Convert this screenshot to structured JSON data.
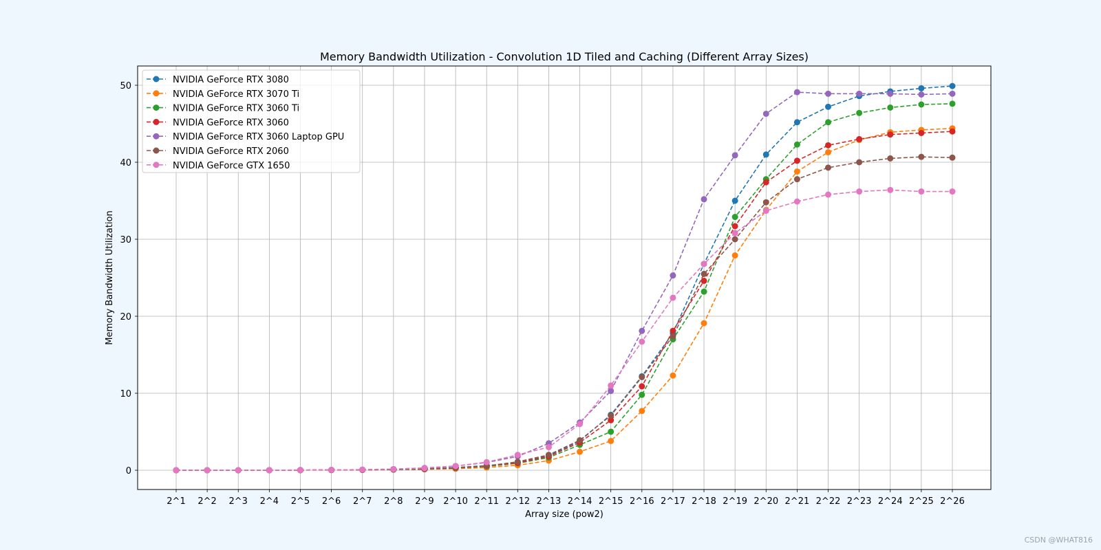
{
  "chart_data": {
    "type": "line",
    "title": "Memory Bandwidth Utilization - Convolution 1D Tiled and Caching (Different Array Sizes)",
    "xlabel": "Array size (pow2)",
    "ylabel": "Memory Bandwidth Utilization",
    "categories": [
      "2^1",
      "2^2",
      "2^3",
      "2^4",
      "2^5",
      "2^6",
      "2^7",
      "2^8",
      "2^9",
      "2^10",
      "2^11",
      "2^12",
      "2^13",
      "2^14",
      "2^15",
      "2^16",
      "2^17",
      "2^18",
      "2^19",
      "2^20",
      "2^21",
      "2^22",
      "2^23",
      "2^24",
      "2^25",
      "2^26"
    ],
    "ylim": [
      -2.5,
      52.5
    ],
    "yticks": [
      0,
      10,
      20,
      30,
      40,
      50
    ],
    "grid": true,
    "legend_position": "top-left",
    "series": [
      {
        "name": "NVIDIA GeForce RTX 3080",
        "color": "#1f77b4",
        "values": [
          0.0,
          0.0,
          0.0,
          0.01,
          0.02,
          0.03,
          0.05,
          0.1,
          0.2,
          0.35,
          0.6,
          1.0,
          1.9,
          3.8,
          7.2,
          12.2,
          17.8,
          26.8,
          35.0,
          41.0,
          45.2,
          47.2,
          48.6,
          49.2,
          49.6,
          49.9
        ]
      },
      {
        "name": "NVIDIA GeForce RTX 3070 Ti",
        "color": "#ff7f0e",
        "values": [
          0.0,
          0.0,
          0.0,
          0.0,
          0.01,
          0.02,
          0.04,
          0.07,
          0.12,
          0.2,
          0.35,
          0.65,
          1.25,
          2.4,
          3.8,
          7.7,
          12.3,
          19.1,
          27.9,
          33.8,
          38.8,
          41.3,
          42.9,
          43.9,
          44.2,
          44.4
        ]
      },
      {
        "name": "NVIDIA GeForce RTX 3060 Ti",
        "color": "#2ca02c",
        "values": [
          0.0,
          0.0,
          0.0,
          0.01,
          0.02,
          0.03,
          0.05,
          0.09,
          0.16,
          0.28,
          0.5,
          0.9,
          1.65,
          3.3,
          5.0,
          9.8,
          17.0,
          23.2,
          32.9,
          37.8,
          42.3,
          45.2,
          46.4,
          47.1,
          47.5,
          47.6
        ]
      },
      {
        "name": "NVIDIA GeForce RTX 3060",
        "color": "#d62728",
        "values": [
          0.0,
          0.0,
          0.0,
          0.01,
          0.02,
          0.03,
          0.05,
          0.09,
          0.16,
          0.3,
          0.55,
          0.95,
          1.8,
          3.6,
          6.5,
          10.9,
          18.1,
          24.6,
          31.7,
          37.4,
          40.2,
          42.2,
          43.0,
          43.6,
          43.8,
          44.0
        ]
      },
      {
        "name": "NVIDIA GeForce RTX 3060 Laptop GPU",
        "color": "#9467bd",
        "values": [
          0.0,
          0.0,
          0.01,
          0.01,
          0.03,
          0.05,
          0.08,
          0.15,
          0.3,
          0.55,
          1.0,
          1.8,
          3.5,
          6.2,
          10.3,
          18.1,
          25.3,
          35.2,
          40.9,
          46.3,
          49.1,
          48.9,
          48.9,
          48.9,
          48.8,
          48.9
        ]
      },
      {
        "name": "NVIDIA GeForce RTX 2060",
        "color": "#8c564b",
        "values": [
          0.0,
          0.0,
          0.0,
          0.01,
          0.02,
          0.03,
          0.05,
          0.09,
          0.17,
          0.3,
          0.55,
          1.1,
          2.0,
          3.9,
          7.1,
          12.1,
          17.4,
          25.5,
          30.0,
          34.8,
          37.8,
          39.3,
          40.0,
          40.5,
          40.7,
          40.6
        ]
      },
      {
        "name": "NVIDIA GeForce GTX 1650",
        "color": "#e377c2",
        "values": [
          0.0,
          0.0,
          0.01,
          0.01,
          0.03,
          0.05,
          0.08,
          0.15,
          0.28,
          0.55,
          1.05,
          2.0,
          3.0,
          6.0,
          11.0,
          16.7,
          22.4,
          26.8,
          30.8,
          33.7,
          34.9,
          35.8,
          36.2,
          36.4,
          36.2,
          36.2
        ]
      }
    ]
  },
  "watermark": "CSDN @WHAT816"
}
